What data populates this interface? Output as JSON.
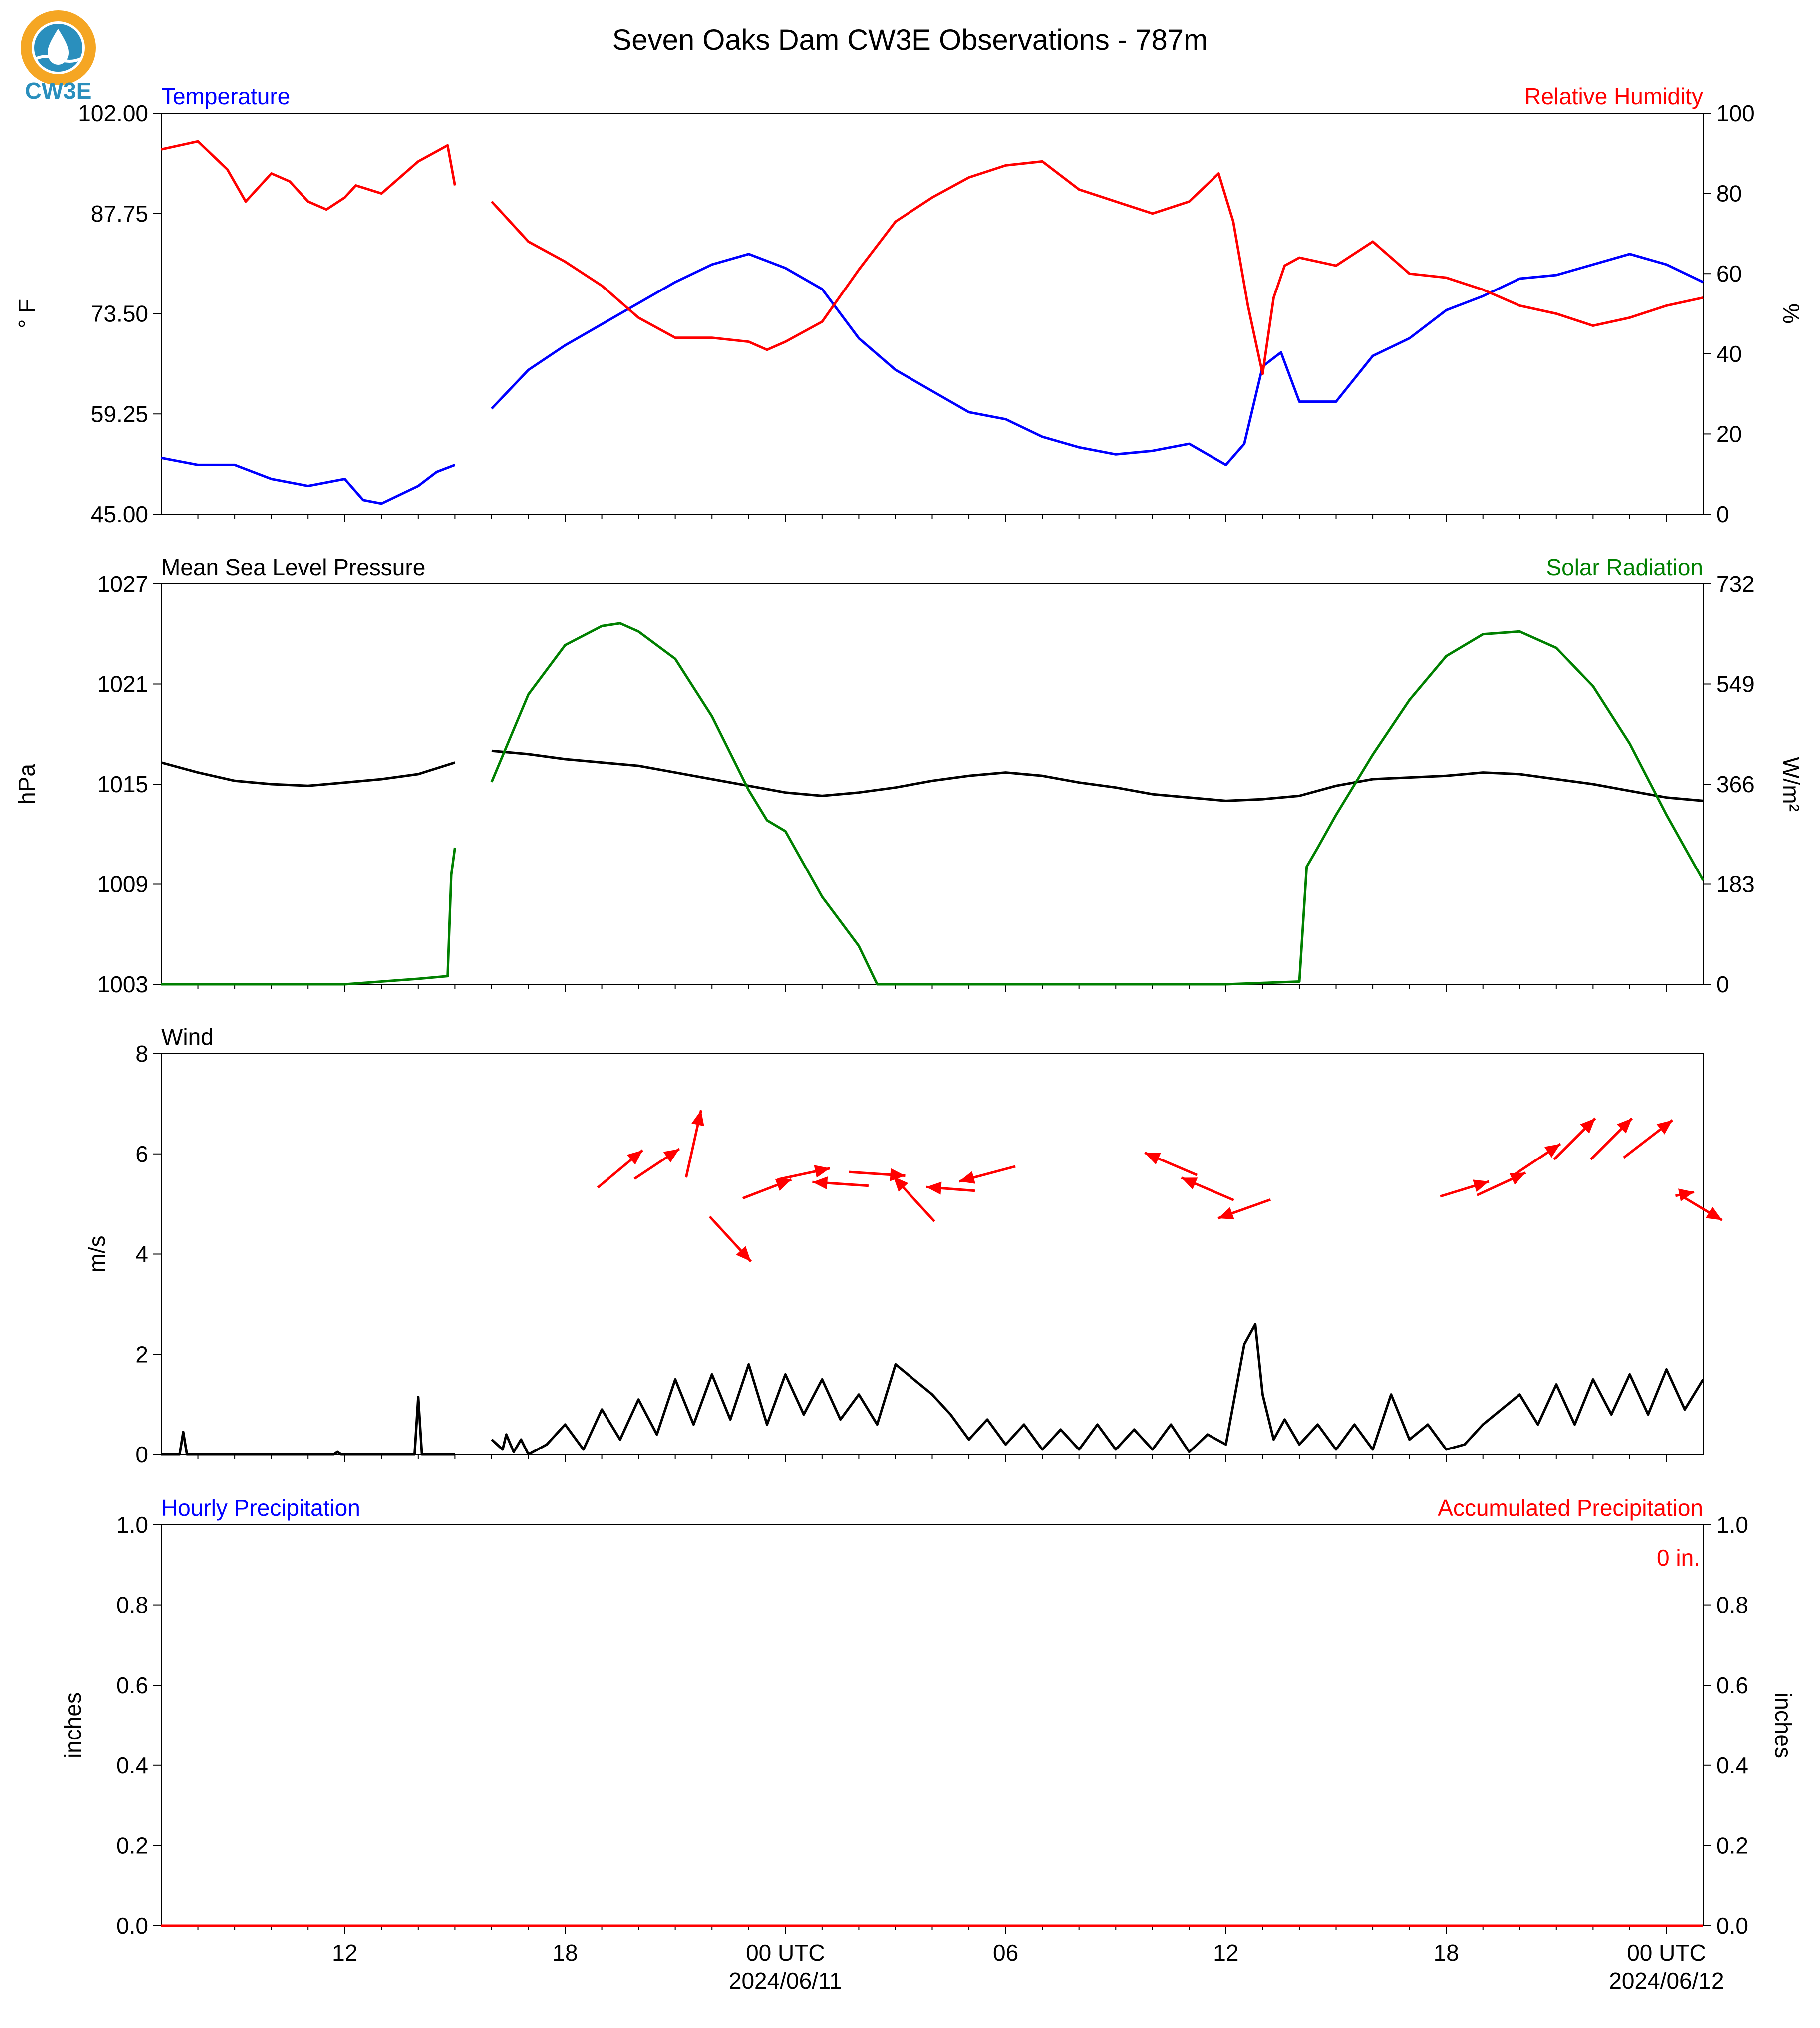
{
  "title": "Seven Oaks Dam CW3E Observations - 787m",
  "logo": {
    "text": "CW3E",
    "ring_color": "#f5a623",
    "drop_color": "#2a8fbd"
  },
  "colors": {
    "temperature": "#0000ff",
    "humidity": "#ff0000",
    "pressure": "#000000",
    "solar": "#008000",
    "wind_speed": "#000000",
    "wind_arrow": "#ff0000",
    "precip_hourly": "#0000ff",
    "precip_accum": "#ff0000"
  },
  "x_axis": {
    "unit": "hours since first sample",
    "range": [
      0,
      42
    ],
    "major_ticks": [
      {
        "x": 5,
        "label": "12"
      },
      {
        "x": 11,
        "label": "18"
      },
      {
        "x": 17,
        "label": "00 UTC",
        "sublabel": "2024/06/11"
      },
      {
        "x": 23,
        "label": "06"
      },
      {
        "x": 29,
        "label": "12"
      },
      {
        "x": 35,
        "label": "18"
      },
      {
        "x": 41,
        "label": "00 UTC",
        "sublabel": "2024/06/12"
      }
    ],
    "minor_ticks": [
      1,
      2,
      3,
      4,
      6,
      7,
      8,
      9,
      10,
      12,
      13,
      14,
      15,
      16,
      18,
      19,
      20,
      21,
      22,
      24,
      25,
      26,
      27,
      28,
      30,
      31,
      32,
      33,
      34,
      36,
      37,
      38,
      39,
      40
    ]
  },
  "chart_data": [
    {
      "type": "line",
      "panel": "temperature_humidity",
      "left_title": "Temperature",
      "right_title": "Relative Humidity",
      "ylabel_left": "° F",
      "ylabel_right": "%",
      "ylim_left": [
        45,
        102
      ],
      "ylim_right": [
        0,
        100
      ],
      "yticks_left": [
        "45.00",
        "59.25",
        "73.50",
        "87.75",
        "102.00"
      ],
      "yticks_right": [
        "0",
        "20",
        "40",
        "60",
        "80",
        "100"
      ],
      "gap": [
        8,
        9
      ],
      "series": [
        {
          "name": "Temperature",
          "axis": "left",
          "x": [
            0,
            1,
            2,
            3,
            4,
            5,
            5.5,
            6,
            7,
            7.5,
            8,
            9,
            10,
            11,
            12,
            13,
            14,
            15,
            16,
            16.5,
            17,
            18,
            19,
            20,
            21,
            22,
            23,
            24,
            25,
            26,
            27,
            28,
            29,
            29.5,
            30,
            30.5,
            31,
            32,
            33,
            34,
            35,
            36,
            37,
            38,
            39,
            40,
            41,
            42
          ],
          "y": [
            53,
            52,
            52,
            50,
            49,
            50,
            47,
            46.5,
            49,
            51,
            52,
            60,
            65.5,
            69,
            72,
            75,
            78,
            80.5,
            82,
            81,
            80,
            77,
            70,
            65.5,
            62.5,
            59.5,
            58.5,
            56,
            54.5,
            53.5,
            54,
            55,
            52,
            55,
            66,
            68,
            61,
            61,
            67.5,
            70,
            74,
            76,
            78.5,
            79,
            80.5,
            82,
            80.5,
            78
          ]
        },
        {
          "name": "Relative Humidity",
          "axis": "right",
          "x": [
            0,
            1,
            1.8,
            2.3,
            3,
            3.5,
            4,
            4.5,
            5,
            5.3,
            6,
            7,
            7.8,
            8,
            9,
            10,
            11,
            12,
            13,
            14,
            15,
            16,
            16.5,
            17,
            18,
            19,
            20,
            21,
            22,
            23,
            24,
            25,
            26,
            27,
            28,
            28.8,
            29.2,
            29.6,
            30,
            30.3,
            30.6,
            31,
            32,
            33,
            34,
            35,
            36,
            37,
            38,
            39,
            40,
            41,
            42
          ],
          "y": [
            91,
            93,
            86,
            78,
            85,
            83,
            78,
            76,
            79,
            82,
            80,
            88,
            92,
            82,
            78,
            68,
            63,
            57,
            49,
            44,
            44,
            43,
            41,
            43,
            48,
            61,
            73,
            79,
            84,
            87,
            88,
            81,
            78,
            75,
            78,
            85,
            73,
            52,
            35,
            54,
            62,
            64,
            62,
            68,
            60,
            59,
            56,
            52,
            50,
            47,
            49,
            52,
            54
          ]
        }
      ]
    },
    {
      "type": "line",
      "panel": "pressure_solar",
      "left_title": "Mean Sea Level Pressure",
      "right_title": "Solar Radiation",
      "ylabel_left": "hPa",
      "ylabel_right": "W/m²",
      "ylim_left": [
        1003,
        1027
      ],
      "ylim_right": [
        0,
        732
      ],
      "yticks_left": [
        "1003",
        "1009",
        "1015",
        "1021",
        "1027"
      ],
      "yticks_right": [
        "0",
        "183",
        "366",
        "549",
        "732"
      ],
      "gap": [
        8,
        9
      ],
      "series": [
        {
          "name": "Mean Sea Level Pressure",
          "axis": "left",
          "x": [
            0,
            1,
            2,
            3,
            4,
            5,
            6,
            7,
            8,
            9,
            10,
            11,
            12,
            13,
            14,
            15,
            16,
            17,
            18,
            19,
            20,
            21,
            22,
            23,
            24,
            25,
            26,
            27,
            28,
            29,
            30,
            31,
            32,
            33,
            34,
            35,
            36,
            37,
            38,
            39,
            40,
            41,
            42
          ],
          "y": [
            1016.3,
            1015.7,
            1015.2,
            1015.0,
            1014.9,
            1015.1,
            1015.3,
            1015.6,
            1016.3,
            1017.0,
            1016.8,
            1016.5,
            1016.3,
            1016.1,
            1015.7,
            1015.3,
            1014.9,
            1014.5,
            1014.3,
            1014.5,
            1014.8,
            1015.2,
            1015.5,
            1015.7,
            1015.5,
            1015.1,
            1014.8,
            1014.4,
            1014.2,
            1014.0,
            1014.1,
            1014.3,
            1014.9,
            1015.3,
            1015.4,
            1015.5,
            1015.7,
            1015.6,
            1015.3,
            1015.0,
            1014.6,
            1014.2,
            1014.0
          ]
        },
        {
          "name": "Solar Radiation",
          "axis": "right",
          "x": [
            0,
            5,
            7,
            7.8,
            7.9,
            8,
            9,
            10,
            11,
            12,
            12.5,
            13,
            14,
            15,
            16,
            16.5,
            17,
            17.5,
            18,
            19,
            19.5,
            23,
            27,
            28,
            29,
            31,
            31.2,
            31.5,
            32,
            33,
            34,
            35,
            36,
            37,
            38,
            39,
            40,
            41,
            42
          ],
          "y": [
            0,
            0,
            10,
            15,
            200,
            250,
            370,
            530,
            620,
            655,
            660,
            645,
            595,
            490,
            355,
            300,
            280,
            220,
            160,
            70,
            0,
            0,
            0,
            0,
            0,
            5,
            215,
            250,
            310,
            420,
            520,
            600,
            640,
            645,
            615,
            545,
            440,
            310,
            190
          ]
        }
      ]
    },
    {
      "type": "line",
      "panel": "wind",
      "left_title": "Wind",
      "ylabel_left": "m/s",
      "ylim_left": [
        0,
        8
      ],
      "yticks_left": [
        "0",
        "2",
        "4",
        "6",
        "8"
      ],
      "gap": [
        8,
        9
      ],
      "series": [
        {
          "name": "Wind",
          "axis": "left",
          "x": [
            0,
            0.5,
            0.6,
            0.7,
            1,
            2,
            3,
            4,
            4.7,
            4.8,
            4.9,
            5.5,
            6,
            6.9,
            7.0,
            7.1,
            8,
            9,
            9.3,
            9.4,
            9.6,
            9.8,
            10,
            10.5,
            11,
            11.5,
            12,
            12.5,
            13,
            13.5,
            14,
            14.5,
            15,
            15.5,
            16,
            16.5,
            17,
            17.5,
            18,
            18.5,
            19,
            19.5,
            20,
            20.5,
            21,
            21.5,
            22,
            22.5,
            23,
            23.5,
            24,
            24.5,
            25,
            25.5,
            26,
            26.5,
            27,
            27.5,
            28,
            28.5,
            29,
            29.5,
            29.8,
            30,
            30.3,
            30.6,
            31,
            31.5,
            32,
            32.5,
            33,
            33.5,
            34,
            34.5,
            35,
            35.5,
            36,
            36.5,
            37,
            37.5,
            38,
            38.5,
            39,
            39.5,
            40,
            40.5,
            41,
            41.5,
            42
          ],
          "y": [
            0,
            0,
            0.45,
            0,
            0,
            0,
            0,
            0,
            0,
            0.05,
            0,
            0,
            0,
            0,
            1.15,
            0,
            0,
            0.3,
            0.1,
            0.4,
            0.05,
            0.3,
            0,
            0.2,
            0.6,
            0.1,
            0.9,
            0.3,
            1.1,
            0.4,
            1.5,
            0.6,
            1.6,
            0.7,
            1.8,
            0.6,
            1.6,
            0.8,
            1.5,
            0.7,
            1.2,
            0.6,
            1.8,
            1.5,
            1.2,
            0.8,
            0.3,
            0.7,
            0.2,
            0.6,
            0.1,
            0.5,
            0.1,
            0.6,
            0.1,
            0.5,
            0.1,
            0.6,
            0.05,
            0.4,
            0.2,
            2.2,
            2.6,
            1.2,
            0.3,
            0.7,
            0.2,
            0.6,
            0.1,
            0.6,
            0.1,
            1.2,
            0.3,
            0.6,
            0.1,
            0.2,
            0.6,
            0.9,
            1.2,
            0.6,
            1.4,
            0.6,
            1.5,
            0.8,
            1.6,
            0.8,
            1.7,
            0.9,
            1.5
          ]
        },
        {
          "name": "Wind direction",
          "axis": "left",
          "marker": "arrow",
          "x": [
            12.5,
            13.5,
            14.5,
            15.5,
            16.5,
            17.5,
            18.5,
            19.5,
            20.5,
            21.5,
            22.5,
            27.5,
            28.5,
            29.5,
            35.5,
            36.5,
            37.5,
            38.5,
            39.5,
            40.5,
            41.5,
            42
          ],
          "y": [
            5.7,
            5.8,
            6.2,
            4.3,
            5.3,
            5.6,
            5.4,
            5.6,
            5.1,
            5.3,
            5.6,
            5.8,
            5.3,
            4.9,
            5.3,
            5.4,
            5.9,
            6.3,
            6.3,
            6.3,
            5.2,
            4.9
          ],
          "u": [
            1.2,
            1.2,
            0.4,
            1.1,
            1.3,
            1.4,
            -1.5,
            1.5,
            -1.1,
            -1.3,
            -1.5,
            -1.4,
            -1.4,
            -1.4,
            1.3,
            1.3,
            1.2,
            1.1,
            1.1,
            1.3,
            0.5,
            1.0
          ],
          "v": [
            1.0,
            0.8,
            1.8,
            -1.2,
            0.5,
            0.3,
            0.1,
            -0.1,
            1.2,
            0.1,
            -0.4,
            0.6,
            0.6,
            -0.5,
            0.4,
            0.6,
            0.8,
            1.1,
            1.1,
            1.0,
            0.1,
            -0.6
          ]
        }
      ]
    },
    {
      "type": "line",
      "panel": "precipitation",
      "left_title": "Hourly Precipitation",
      "right_title": "Accumulated Precipitation",
      "ylabel_left": "inches",
      "ylabel_right": "inches",
      "ylim_left": [
        0,
        1
      ],
      "ylim_right": [
        0,
        1
      ],
      "yticks_left": [
        "0.0",
        "0.2",
        "0.4",
        "0.6",
        "0.8",
        "1.0"
      ],
      "yticks_right": [
        "0.0",
        "0.2",
        "0.4",
        "0.6",
        "0.8",
        "1.0"
      ],
      "annotation": "0 in.",
      "series": [
        {
          "name": "Hourly Precipitation",
          "axis": "left",
          "x": [
            0,
            42
          ],
          "y": [
            0,
            0
          ]
        },
        {
          "name": "Accumulated Precipitation",
          "axis": "right",
          "x": [
            0,
            42
          ],
          "y": [
            0,
            0
          ]
        }
      ]
    }
  ]
}
